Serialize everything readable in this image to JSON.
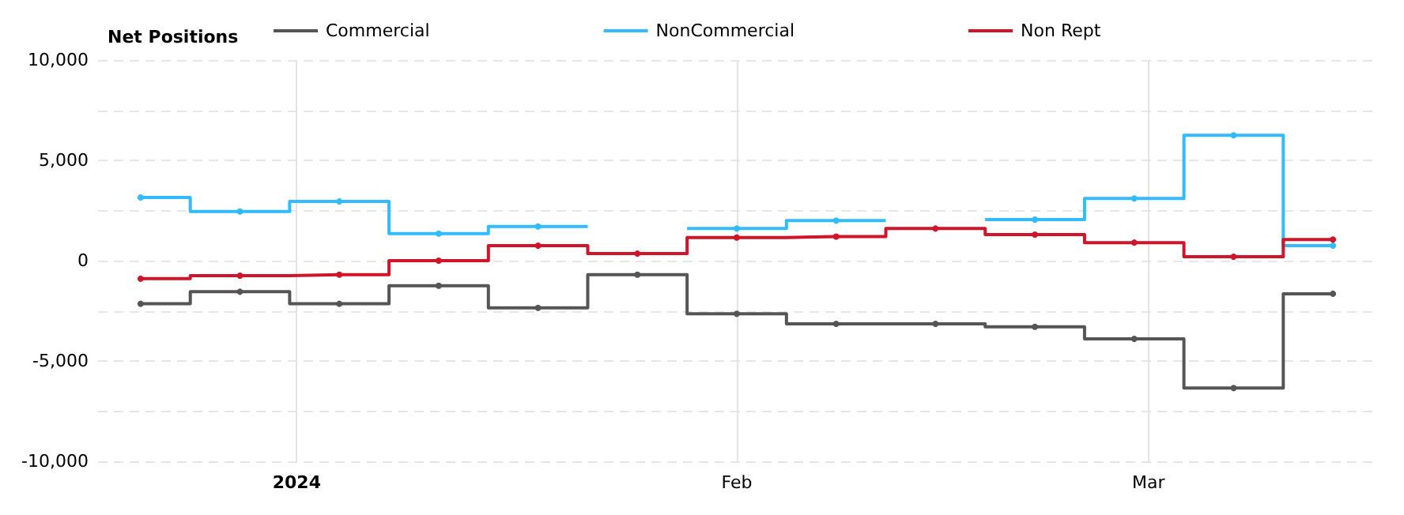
{
  "chart_data": {
    "type": "step",
    "title": "Net Positions",
    "x": [
      "2023-12-21",
      "2023-12-28",
      "2024-01-04",
      "2024-01-11",
      "2024-01-18",
      "2024-01-25",
      "2024-02-01",
      "2024-02-08",
      "2024-02-15",
      "2024-02-22",
      "2024-02-29",
      "2024-03-07",
      "2024-03-14"
    ],
    "series": [
      {
        "name": "Commercial",
        "color": "#555555",
        "values": [
          -2150,
          -1550,
          -2150,
          -1250,
          -2350,
          -700,
          -2650,
          -3150,
          -3150,
          -3300,
          -3900,
          -6350,
          -1650
        ]
      },
      {
        "name": "NonCommercial",
        "color": "#33bbff",
        "values": [
          3150,
          2450,
          2950,
          1350,
          1700,
          null,
          1600,
          2000,
          null,
          2050,
          3100,
          6250,
          750
        ]
      },
      {
        "name": "Non Rept",
        "color": "#d0142a",
        "values": [
          -900,
          -750,
          -700,
          0,
          750,
          350,
          1150,
          1200,
          1600,
          1300,
          900,
          200,
          1050
        ]
      }
    ],
    "xlim": [
      "2023-12-18",
      "2024-03-17"
    ],
    "xticks": [
      {
        "value": "2024-01-01",
        "label": "2024"
      },
      {
        "value": "2024-02-01",
        "label": "Feb"
      },
      {
        "value": "2024-03-01",
        "label": "Mar"
      }
    ],
    "ylim": [
      -10000,
      10000
    ],
    "yticks": [
      {
        "value": -10000,
        "label": "-10,000"
      },
      {
        "value": -7500,
        "label": null
      },
      {
        "value": -5000,
        "label": "-5,000"
      },
      {
        "value": -2500,
        "label": null
      },
      0,
      {
        "value": 2500,
        "label": null
      },
      {
        "value": 5000,
        "label": "5,000"
      },
      {
        "value": 7500,
        "label": null
      },
      {
        "value": 10000,
        "label": "10,000"
      }
    ],
    "grid": true,
    "legend": "top",
    "marker": "circle",
    "line_style": "solid"
  }
}
